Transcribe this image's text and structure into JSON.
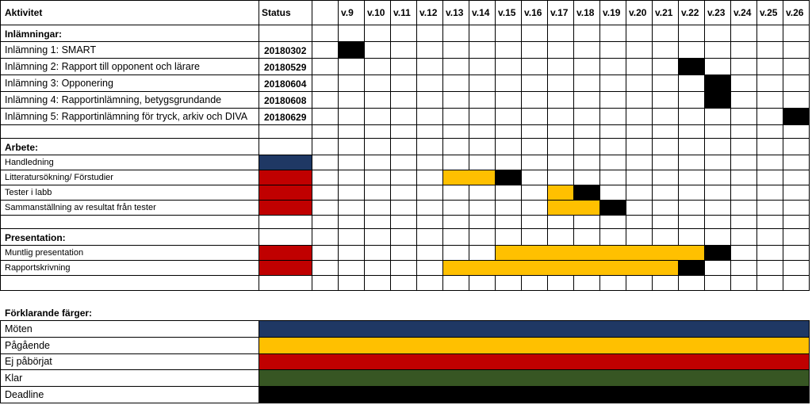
{
  "colors": {
    "meeting": "#1f3864",
    "ongoing": "#ffc000",
    "not_started": "#c00000",
    "done": "#375623",
    "deadline": "#000000",
    "grid": "#000000"
  },
  "header": {
    "activity": "Aktivitet",
    "status": "Status"
  },
  "weeks": [
    "v.9",
    "v.10",
    "v.11",
    "v.12",
    "v.13",
    "v.14",
    "v.15",
    "v.16",
    "v.17",
    "v.18",
    "v.19",
    "v.20",
    "v.21",
    "v.22",
    "v.23",
    "v.24",
    "v.25",
    "v.26"
  ],
  "rows": [
    {
      "type": "section",
      "label": "Inlämningar:"
    },
    {
      "type": "task",
      "size": "big",
      "label": "Inlämning 1: SMART",
      "date": "20180302",
      "status": "",
      "bars": [
        {
          "from": 0,
          "to": 0,
          "color": "deadline"
        }
      ]
    },
    {
      "type": "task",
      "size": "big",
      "label": "Inlämning 2: Rapport till opponent och lärare",
      "date": "20180529",
      "status": "",
      "bars": [
        {
          "from": 13,
          "to": 13,
          "color": "deadline"
        }
      ]
    },
    {
      "type": "task",
      "size": "big",
      "label": "Inlämning 3: Opponering",
      "date": "20180604",
      "status": "",
      "bars": [
        {
          "from": 14,
          "to": 14,
          "color": "deadline"
        }
      ]
    },
    {
      "type": "task",
      "size": "big",
      "label": "Inlämning 4: Rapportinlämning, betygsgrundande",
      "date": "20180608",
      "status": "",
      "bars": [
        {
          "from": 14,
          "to": 14,
          "color": "deadline"
        }
      ]
    },
    {
      "type": "task",
      "size": "big",
      "label": "Inlämning 5: Rapportinlämning för tryck, arkiv och DIVA",
      "date": "20180629",
      "status": "",
      "bars": [
        {
          "from": 17,
          "to": 17,
          "color": "deadline"
        }
      ]
    },
    {
      "type": "blank"
    },
    {
      "type": "section",
      "label": "Arbete:"
    },
    {
      "type": "task",
      "size": "small",
      "label": "Handledning",
      "date": "",
      "status": "meeting",
      "bars": []
    },
    {
      "type": "task",
      "size": "small",
      "label": "Litteratursökning/ Förstudier",
      "date": "",
      "status": "not_started",
      "bars": [
        {
          "from": 4,
          "to": 5,
          "color": "ongoing"
        },
        {
          "from": 6,
          "to": 6,
          "color": "deadline"
        }
      ]
    },
    {
      "type": "task",
      "size": "small",
      "label": "Tester i labb",
      "date": "",
      "status": "not_started",
      "bars": [
        {
          "from": 8,
          "to": 8,
          "color": "ongoing"
        },
        {
          "from": 9,
          "to": 9,
          "color": "deadline"
        }
      ]
    },
    {
      "type": "task",
      "size": "small",
      "label": "Sammanställning av resultat från tester",
      "date": "",
      "status": "not_started",
      "bars": [
        {
          "from": 8,
          "to": 9,
          "color": "ongoing"
        },
        {
          "from": 10,
          "to": 10,
          "color": "deadline"
        }
      ]
    },
    {
      "type": "blank"
    },
    {
      "type": "section",
      "label": "Presentation:"
    },
    {
      "type": "task",
      "size": "small",
      "label": "Muntlig presentation",
      "date": "",
      "status": "not_started",
      "bars": [
        {
          "from": 6,
          "to": 13,
          "color": "ongoing"
        },
        {
          "from": 14,
          "to": 14,
          "color": "deadline"
        }
      ]
    },
    {
      "type": "task",
      "size": "small",
      "label": "Rapportskrivning",
      "date": "",
      "status": "not_started",
      "bars": [
        {
          "from": 4,
          "to": 12,
          "color": "ongoing"
        },
        {
          "from": 13,
          "to": 13,
          "color": "deadline"
        }
      ]
    },
    {
      "type": "blank"
    }
  ],
  "legend": {
    "title": "Förklarande färger:",
    "items": [
      {
        "label": "Möten",
        "color": "meeting"
      },
      {
        "label": "Pågående",
        "color": "ongoing"
      },
      {
        "label": "Ej påbörjat",
        "color": "not_started"
      },
      {
        "label": "Klar",
        "color": "done"
      },
      {
        "label": "Deadline",
        "color": "deadline"
      }
    ]
  }
}
